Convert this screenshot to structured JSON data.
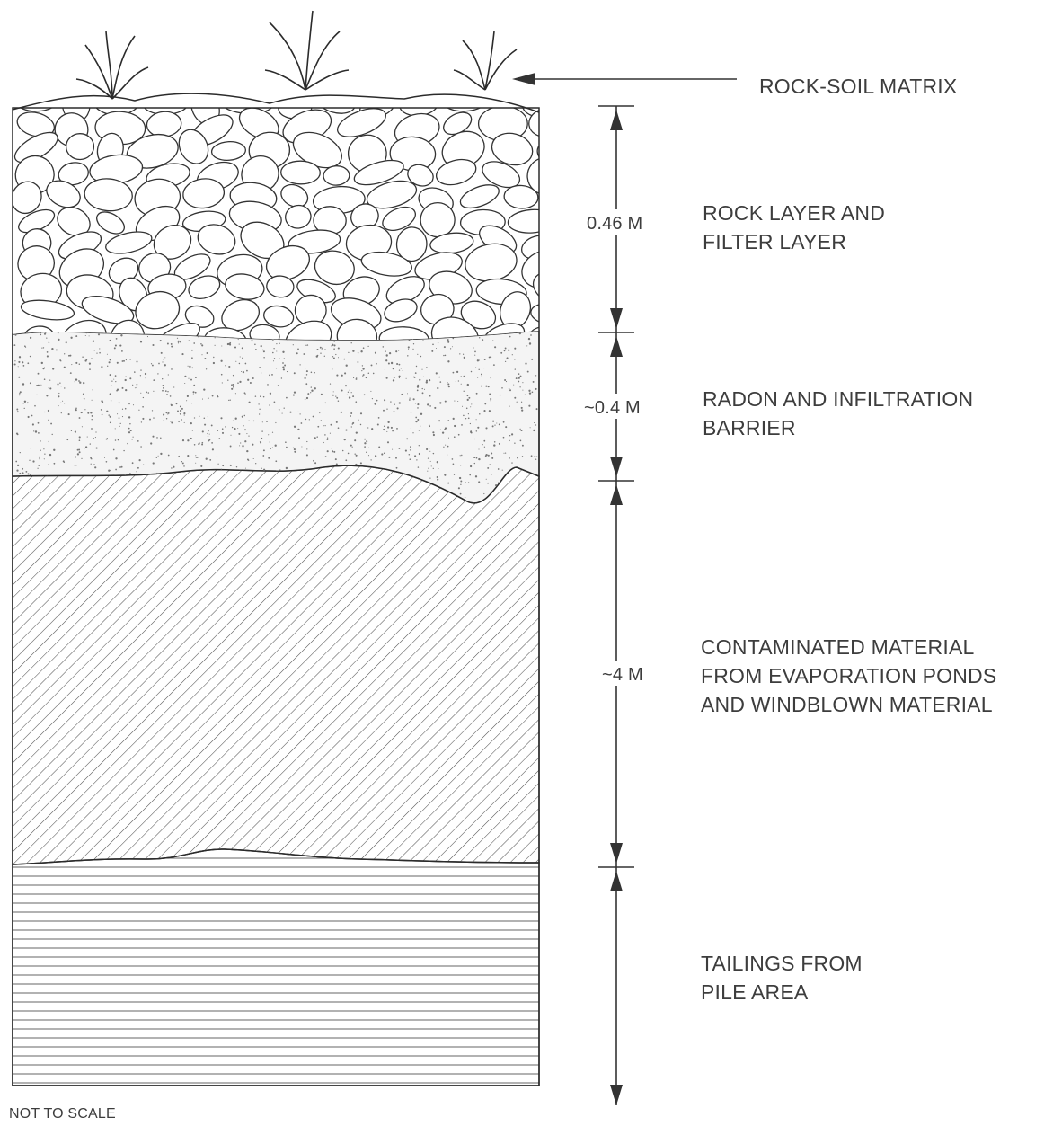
{
  "labels": {
    "rock_soil": "ROCK-SOIL MATRIX",
    "rock_layer": [
      "ROCK LAYER AND",
      "FILTER LAYER"
    ],
    "radon": [
      "RADON AND INFILTRATION",
      "BARRIER"
    ],
    "contaminated": [
      "CONTAMINATED MATERIAL",
      "FROM EVAPORATION PONDS",
      "AND WINDBLOWN MATERIAL"
    ],
    "tailings": [
      "TAILINGS FROM",
      "PILE AREA"
    ]
  },
  "dimensions": {
    "rock_layer": "0.46 M",
    "radon": "~0.4 M",
    "contaminated": "~4 M"
  },
  "note": "NOT TO SCALE"
}
